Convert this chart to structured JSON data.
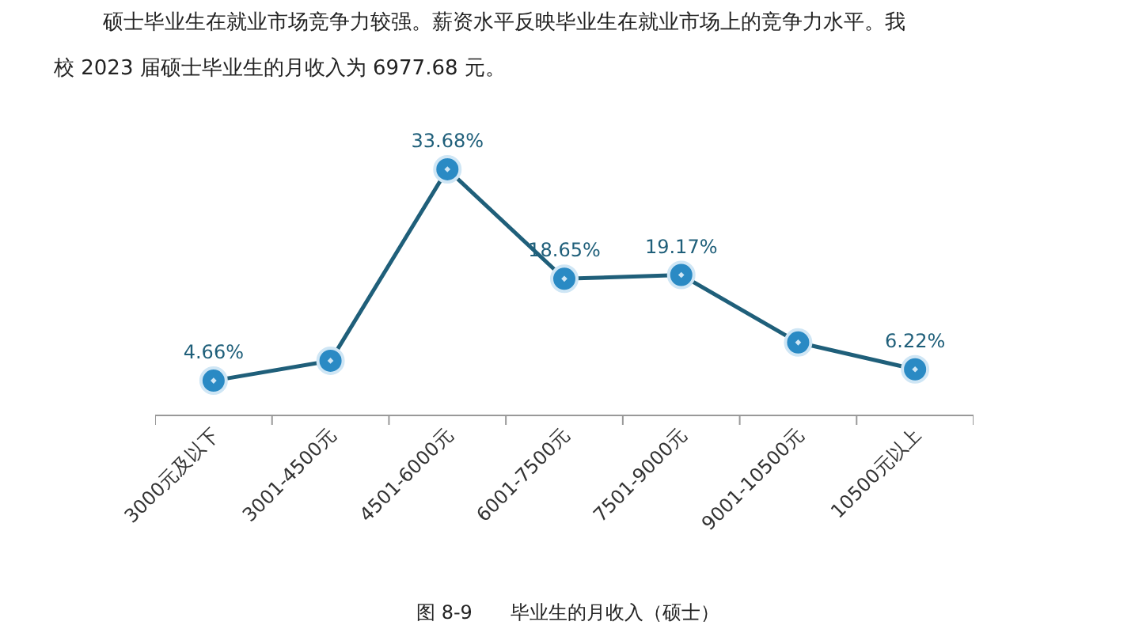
{
  "chart_data": {
    "type": "line",
    "categories": [
      "3000元及以下",
      "3001-4500元",
      "4501-6000元",
      "6001-7500元",
      "7501-9000元",
      "9001-10500元",
      "10500元以上"
    ],
    "series": [
      {
        "color": "#1f5f7a",
        "values": [
          4.66,
          7.4,
          33.68,
          18.65,
          19.17,
          9.9,
          6.22
        ],
        "value_labels": [
          "4.66%",
          null,
          "33.68%",
          "18.65%",
          "19.17%",
          null,
          "6.22%"
        ]
      }
    ],
    "marker": "circle",
    "line_style": "solid",
    "annotations": [
      "硕士毕业生在就业市场竞争力较强。薪资水平反映毕业生在就业市场上的竞争力水平。我",
      "校 2023 届硕士毕业生的月收入为 6977.68 元。",
      "图 8-9　　毕业生的月收入（硕士）"
    ]
  }
}
